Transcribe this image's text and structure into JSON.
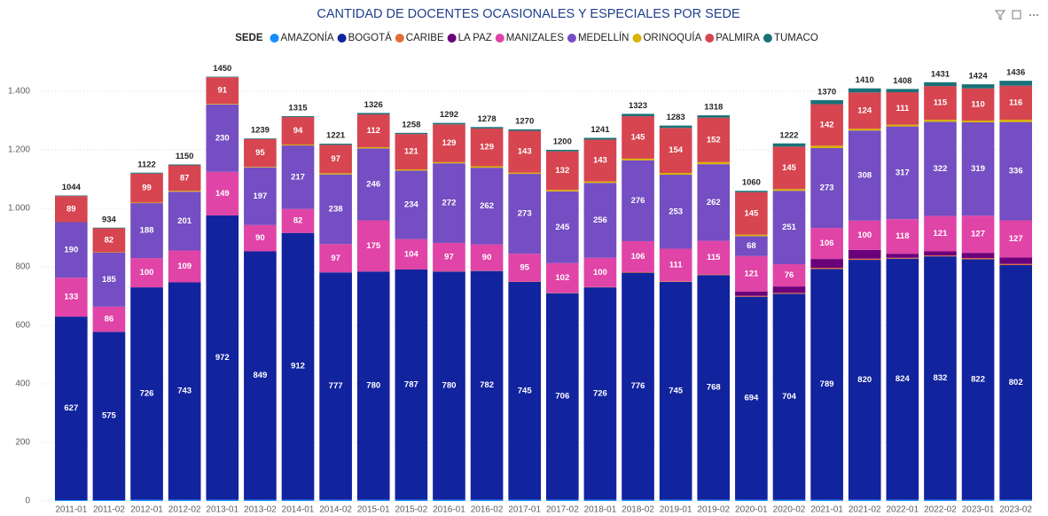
{
  "chart_data": {
    "type": "stacked_bar",
    "title": "CANTIDAD DE DOCENTES OCASIONALES Y ESPECIALES POR SEDE",
    "legend_title": "SEDE",
    "categories": [
      "2011-01",
      "2011-02",
      "2012-01",
      "2012-02",
      "2013-01",
      "2013-02",
      "2014-01",
      "2014-02",
      "2015-01",
      "2015-02",
      "2016-01",
      "2016-02",
      "2017-01",
      "2017-02",
      "2018-01",
      "2018-02",
      "2019-01",
      "2019-02",
      "2020-01",
      "2020-02",
      "2021-01",
      "2021-02",
      "2022-01",
      "2022-02",
      "2023-01",
      "2023-02"
    ],
    "series": [
      {
        "name": "AMAZONÍA",
        "color": "#118DFF",
        "values": [
          3,
          3,
          4,
          4,
          4,
          4,
          4,
          4,
          4,
          4,
          4,
          4,
          4,
          4,
          4,
          4,
          4,
          4,
          4,
          4,
          4,
          4,
          4,
          4,
          4,
          4
        ]
      },
      {
        "name": "BOGOTÁ",
        "color": "#12239E",
        "labels": true,
        "values": [
          627,
          575,
          726,
          743,
          972,
          849,
          912,
          777,
          780,
          787,
          780,
          782,
          745,
          706,
          726,
          776,
          745,
          768,
          694,
          704,
          789,
          820,
          824,
          832,
          822,
          802
        ]
      },
      {
        "name": "CARIBE",
        "color": "#E66C37",
        "values": [
          0,
          0,
          0,
          0,
          0,
          0,
          0,
          0,
          0,
          0,
          1,
          1,
          1,
          1,
          1,
          2,
          2,
          2,
          3,
          3,
          4,
          4,
          3,
          3,
          4,
          4
        ]
      },
      {
        "name": "LA PAZ",
        "color": "#6B007B",
        "values": [
          0,
          0,
          0,
          0,
          0,
          0,
          0,
          0,
          0,
          0,
          0,
          0,
          0,
          0,
          0,
          0,
          0,
          0,
          15,
          22,
          30,
          30,
          14,
          14,
          18,
          22
        ]
      },
      {
        "name": "MANIZALES",
        "color": "#E044A7",
        "labels": true,
        "values": [
          133,
          86,
          100,
          109,
          149,
          90,
          82,
          97,
          175,
          104,
          97,
          90,
          95,
          102,
          100,
          106,
          111,
          115,
          121,
          76,
          106,
          100,
          118,
          121,
          127,
          127
        ]
      },
      {
        "name": "MEDELLÍN",
        "color": "#744EC2",
        "labels": true,
        "values": [
          190,
          185,
          188,
          201,
          230,
          197,
          217,
          238,
          246,
          234,
          272,
          262,
          273,
          245,
          256,
          276,
          253,
          262,
          68,
          251,
          273,
          308,
          317,
          322,
          319,
          336
        ]
      },
      {
        "name": "ORINOQUÍA",
        "color": "#D9B300",
        "values": [
          0,
          1,
          2,
          3,
          2,
          2,
          3,
          4,
          4,
          4,
          4,
          5,
          4,
          5,
          5,
          6,
          6,
          7,
          5,
          6,
          8,
          6,
          6,
          7,
          6,
          8
        ]
      },
      {
        "name": "PALMIRA",
        "color": "#D64550",
        "labels": true,
        "values": [
          89,
          82,
          99,
          87,
          91,
          95,
          94,
          97,
          112,
          121,
          129,
          129,
          143,
          132,
          143,
          145,
          154,
          152,
          145,
          145,
          142,
          124,
          111,
          115,
          110,
          116
        ]
      },
      {
        "name": "TUMACO",
        "color": "#197278",
        "values": [
          2,
          2,
          3,
          3,
          2,
          2,
          3,
          4,
          5,
          4,
          5,
          5,
          5,
          5,
          6,
          8,
          8,
          8,
          5,
          11,
          14,
          14,
          11,
          13,
          14,
          17
        ]
      }
    ],
    "totals": [
      1044,
      934,
      1122,
      1150,
      1450,
      1239,
      1315,
      1221,
      1326,
      1258,
      1292,
      1278,
      1270,
      1200,
      1241,
      1323,
      1283,
      1318,
      1060,
      1222,
      1370,
      1410,
      1408,
      1431,
      1424,
      1436
    ],
    "ylim": [
      0,
      1500
    ],
    "yticks": [
      0,
      200,
      400,
      600,
      800,
      {
        "value": 1000,
        "label": "1.000"
      },
      {
        "value": 1200,
        "label": "1.200"
      },
      {
        "value": 1400,
        "label": "1.400"
      }
    ],
    "grid": true
  }
}
